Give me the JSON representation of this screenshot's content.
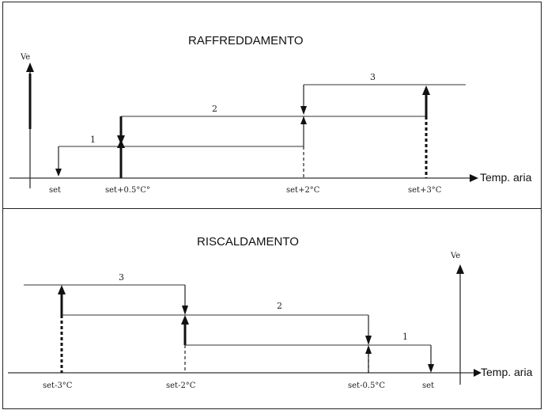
{
  "cooling": {
    "title": "RAFFREDDAMENTO",
    "y_axis_label": "Ve",
    "x_axis_label": "Temp. aria",
    "ticks": [
      "set",
      "set+0.5°C°",
      "set+2°C",
      "set+3°C"
    ],
    "stages": [
      "1",
      "2",
      "3"
    ]
  },
  "heating": {
    "title": "RISCALDAMENTO",
    "y_axis_label": "Ve",
    "x_axis_label": "Temp. aria",
    "ticks": [
      "set-3°C",
      "set-2°C",
      "set-0.5°C",
      "set"
    ],
    "stages": [
      "3",
      "2",
      "1"
    ]
  }
}
